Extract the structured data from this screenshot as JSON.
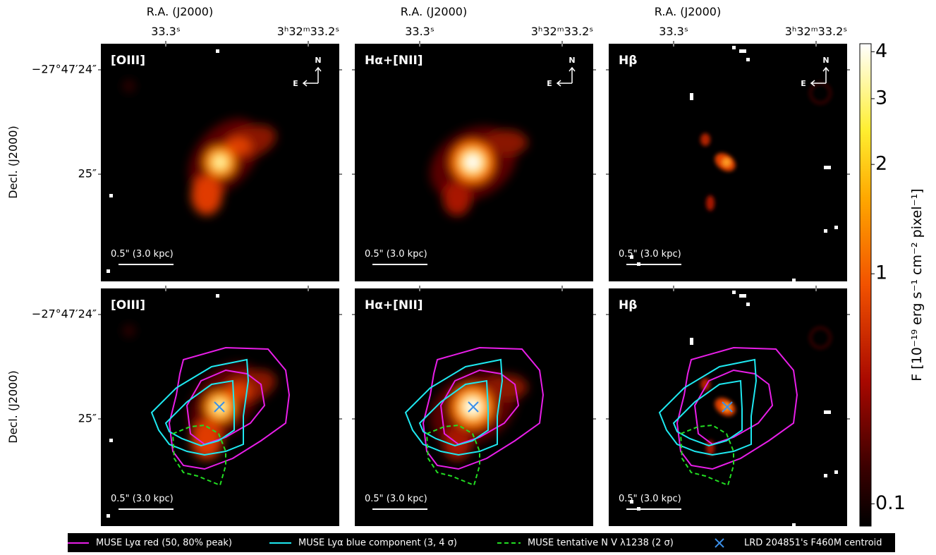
{
  "ra_label": "R.A. (J2000)",
  "ra_ticks": [
    "33.3ˢ",
    "3ʰ32ᵐ33.2ˢ"
  ],
  "dec_label": "Decl. (J2000)",
  "dec_ticks": [
    "−27°47′24″",
    "25″"
  ],
  "panels": [
    {
      "label": "[OIII]"
    },
    {
      "label": "Hα+[NII]"
    },
    {
      "label": "Hβ"
    }
  ],
  "compass": {
    "north": "N",
    "east": "E"
  },
  "scale_bar": "0.5\" (3.0 kpc)",
  "colorbar": {
    "label": "F [10⁻¹⁹ erg s⁻¹ cm⁻² pixel⁻¹]",
    "scale": "asinh",
    "lim": [
      0.045,
      4.2
    ],
    "ticks": [
      0.1,
      1,
      2,
      3,
      4
    ]
  },
  "legend": [
    {
      "name": "MUSE Lyα red (50, 80% peak)",
      "color": "#e81ee8",
      "style": "solid"
    },
    {
      "name": "MUSE Lyα blue component (3, 4 σ)",
      "color": "#1ee8f0",
      "style": "solid"
    },
    {
      "name": "MUSE tentative N V λ1238 (2 σ)",
      "color": "#22dd22",
      "style": "dashed"
    },
    {
      "name": "LRD 204851's F460M centroid",
      "color": "#3b8fe8",
      "style": "x"
    }
  ]
}
